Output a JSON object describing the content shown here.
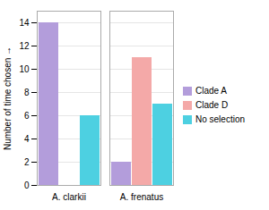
{
  "chart_data": {
    "type": "bar",
    "categories": [
      "A. clarkii",
      "A. frenatus"
    ],
    "series": [
      {
        "name": "Clade A",
        "color": "#b39ddb",
        "values": [
          14,
          2
        ]
      },
      {
        "name": "Clade D",
        "color": "#f4a9a8",
        "values": [
          0,
          11
        ]
      },
      {
        "name": "No selection",
        "color": "#4dd0e1",
        "values": [
          6,
          7
        ]
      }
    ],
    "ylabel": "Number of time chosen",
    "ylim": [
      0,
      15
    ],
    "yticks": [
      0,
      2,
      4,
      6,
      8,
      10,
      12,
      14
    ],
    "grid": true,
    "legend": "right"
  }
}
